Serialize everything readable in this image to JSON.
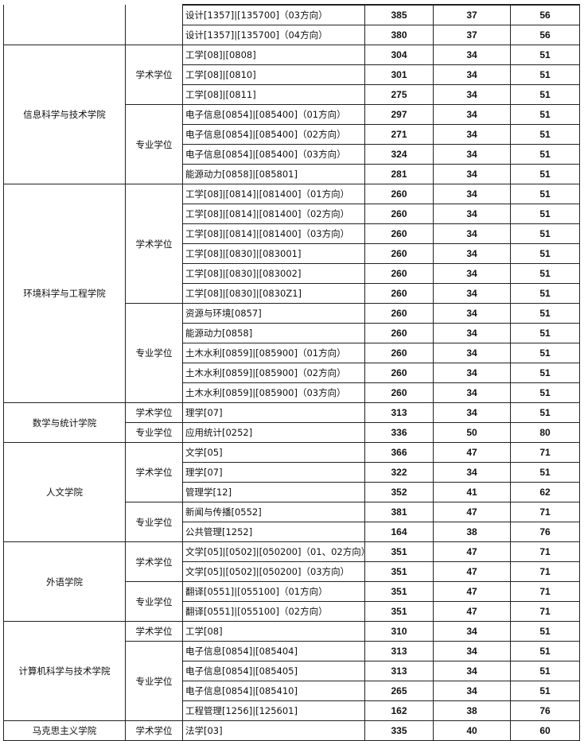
{
  "colleges": [
    {
      "name": "",
      "groups": [
        {
          "type": "",
          "rows": [
            [
              "设计[1357]|[135700]（03方向）",
              "385",
              "37",
              "56"
            ],
            [
              "设计[1357]|[135700]（04方向）",
              "380",
              "37",
              "56"
            ]
          ]
        }
      ]
    },
    {
      "name": "信息科学与技术学院",
      "groups": [
        {
          "type": "学术学位",
          "rows": [
            [
              "工学[08]|[0808]",
              "304",
              "34",
              "51"
            ],
            [
              "工学[08]|[0810]",
              "301",
              "34",
              "51"
            ],
            [
              "工学[08]|[0811]",
              "275",
              "34",
              "51"
            ]
          ]
        },
        {
          "type": "专业学位",
          "rows": [
            [
              "电子信息[0854]|[085400]（01方向）",
              "297",
              "34",
              "51"
            ],
            [
              "电子信息[0854]|[085400]（02方向）",
              "271",
              "34",
              "51"
            ],
            [
              "电子信息[0854]|[085400]（03方向）",
              "324",
              "34",
              "51"
            ],
            [
              "能源动力[0858]|[085801]",
              "281",
              "34",
              "51"
            ]
          ]
        }
      ]
    },
    {
      "name": "环境科学与工程学院",
      "groups": [
        {
          "type": "学术学位",
          "rows": [
            [
              "工学[08]|[0814]|[081400]（01方向）",
              "260",
              "34",
              "51"
            ],
            [
              "工学[08]|[0814]|[081400]（02方向）",
              "260",
              "34",
              "51"
            ],
            [
              "工学[08]|[0814]|[081400]（03方向）",
              "260",
              "34",
              "51"
            ],
            [
              "工学[08]|[0830]|[083001]",
              "260",
              "34",
              "51"
            ],
            [
              "工学[08]|[0830]|[083002]",
              "260",
              "34",
              "51"
            ],
            [
              "工学[08]|[0830]|[0830Z1]",
              "260",
              "34",
              "51"
            ]
          ]
        },
        {
          "type": "专业学位",
          "rows": [
            [
              "资源与环境[0857]",
              "260",
              "34",
              "51"
            ],
            [
              "能源动力[0858]",
              "260",
              "34",
              "51"
            ],
            [
              "土木水利[0859]|[085900]（01方向）",
              "260",
              "34",
              "51"
            ],
            [
              "土木水利[0859]|[085900]（02方向）",
              "260",
              "34",
              "51"
            ],
            [
              "土木水利[0859]|[085900]（03方向）",
              "260",
              "34",
              "51"
            ]
          ]
        }
      ]
    },
    {
      "name": "数学与统计学院",
      "groups": [
        {
          "type": "学术学位",
          "rows": [
            [
              "理学[07]",
              "313",
              "34",
              "51"
            ]
          ]
        },
        {
          "type": "专业学位",
          "rows": [
            [
              "应用统计[0252]",
              "336",
              "50",
              "80"
            ]
          ]
        }
      ]
    },
    {
      "name": "人文学院",
      "groups": [
        {
          "type": "学术学位",
          "rows": [
            [
              "文学[05]",
              "366",
              "47",
              "71"
            ],
            [
              "理学[07]",
              "322",
              "34",
              "51"
            ],
            [
              "管理学[12]",
              "352",
              "41",
              "62"
            ]
          ]
        },
        {
          "type": "专业学位",
          "rows": [
            [
              "新闻与传播[0552]",
              "381",
              "47",
              "71"
            ],
            [
              "公共管理[1252]",
              "164",
              "38",
              "76"
            ]
          ]
        }
      ]
    },
    {
      "name": "外语学院",
      "groups": [
        {
          "type": "学术学位",
          "rows": [
            [
              "文学[05]|[0502]|[050200]（01、02方向）",
              "351",
              "47",
              "71"
            ],
            [
              "文学[05]|[0502]|[050200]（03方向）",
              "351",
              "47",
              "71"
            ]
          ]
        },
        {
          "type": "专业学位",
          "rows": [
            [
              "翻译[0551]|[055100]（01方向）",
              "351",
              "47",
              "71"
            ],
            [
              "翻译[0551]|[055100]（02方向）",
              "351",
              "47",
              "71"
            ]
          ]
        }
      ]
    },
    {
      "name": "计算机科学与技术学院",
      "groups": [
        {
          "type": "学术学位",
          "rows": [
            [
              "工学[08]",
              "310",
              "34",
              "51"
            ]
          ]
        },
        {
          "type": "专业学位",
          "rows": [
            [
              "电子信息[0854]|[085404]",
              "313",
              "34",
              "51"
            ],
            [
              "电子信息[0854]|[085405]",
              "313",
              "34",
              "51"
            ],
            [
              "电子信息[0854]|[085410]",
              "265",
              "34",
              "51"
            ],
            [
              "工程管理[1256]|[125601]",
              "162",
              "38",
              "76"
            ]
          ]
        }
      ]
    },
    {
      "name": "马克思主义学院",
      "groups": [
        {
          "type": "学术学位",
          "rows": [
            [
              "法学[03]",
              "335",
              "40",
              "60"
            ]
          ]
        }
      ]
    }
  ]
}
